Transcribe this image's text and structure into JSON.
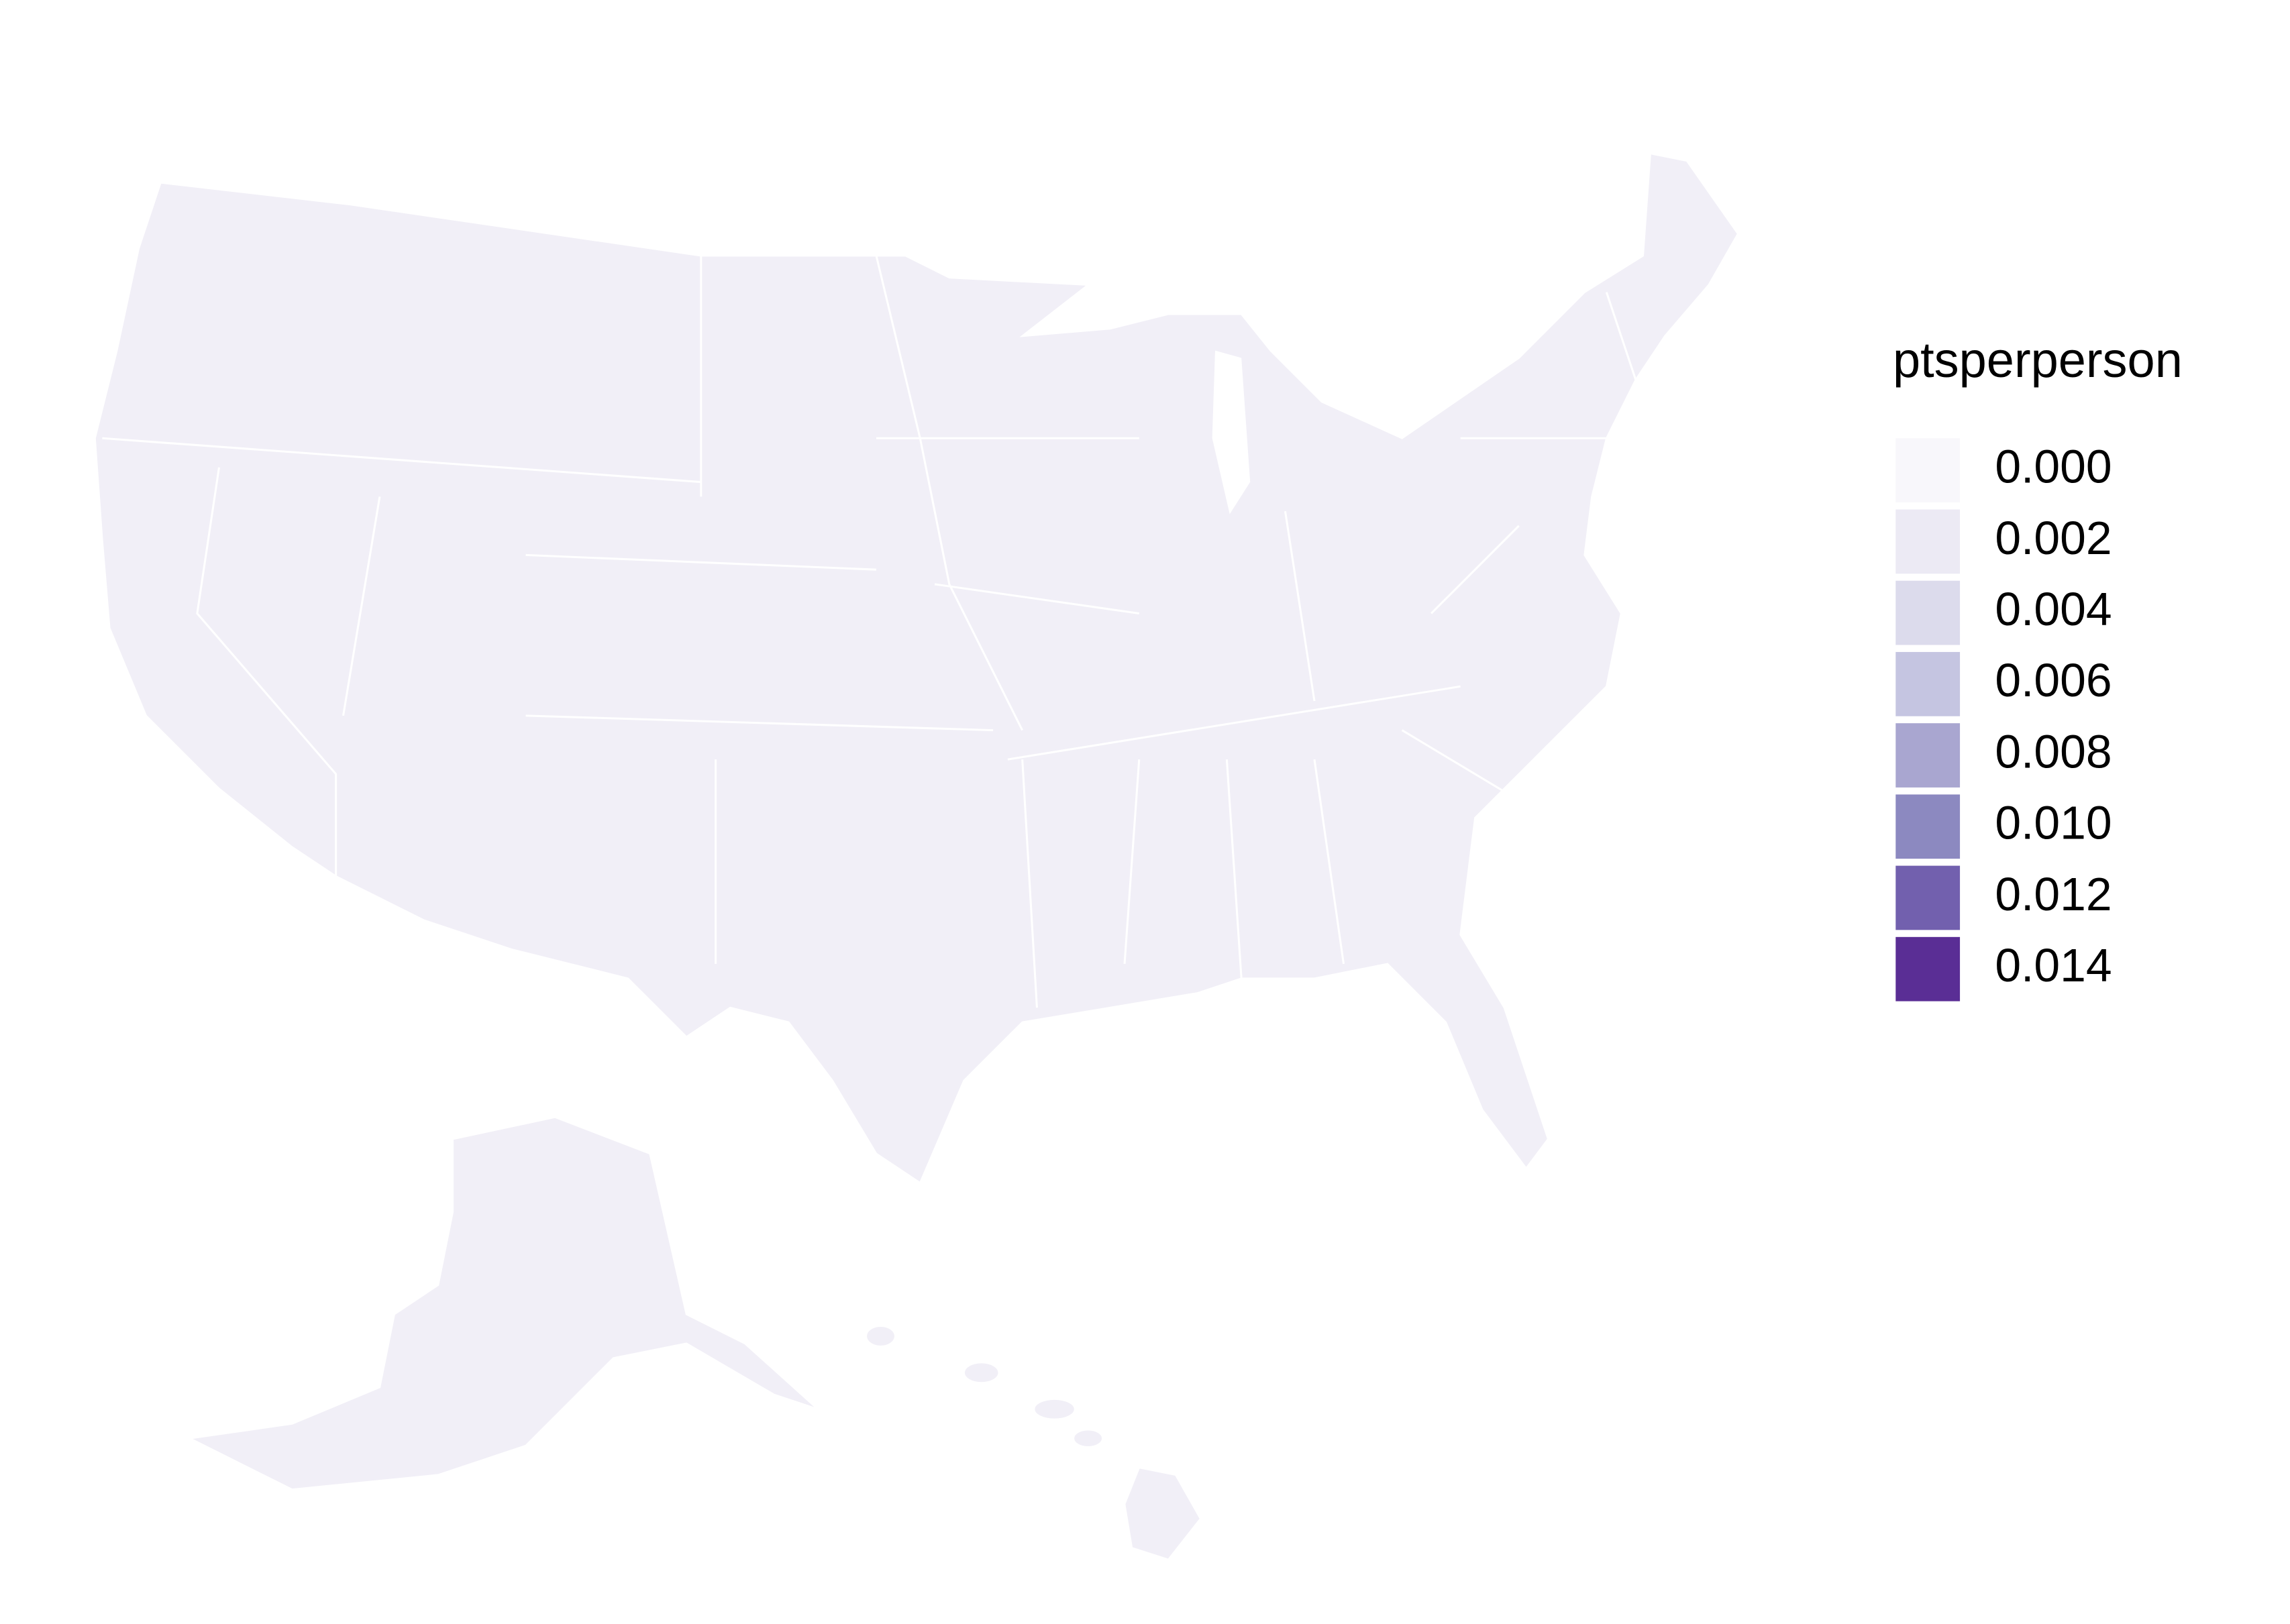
{
  "chart_data": {
    "type": "choropleth",
    "legend": {
      "title": "ptsperperson",
      "items": [
        {
          "value": 0,
          "label": "0.000",
          "color": "#f8f7fb"
        },
        {
          "value": 0.002,
          "label": "0.002",
          "color": "#eceaf4"
        },
        {
          "value": 0.004,
          "label": "0.004",
          "color": "#dcdbec"
        },
        {
          "value": 0.006,
          "label": "0.006",
          "color": "#c5c5e1"
        },
        {
          "value": 0.008,
          "label": "0.008",
          "color": "#a9a6d0"
        },
        {
          "value": 0.01,
          "label": "0.010",
          "color": "#8c89c0"
        },
        {
          "value": 0.012,
          "label": "0.012",
          "color": "#7260ae"
        },
        {
          "value": 0.014,
          "label": "0.014",
          "color": "#5a2e95"
        }
      ]
    }
  }
}
